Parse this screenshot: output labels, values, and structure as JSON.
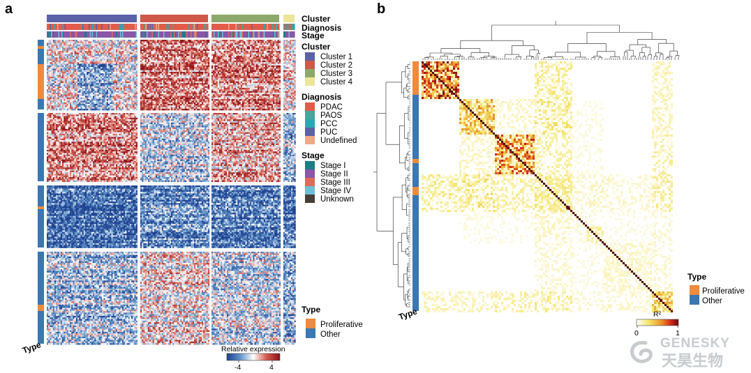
{
  "panels": {
    "a": "a",
    "b": "b"
  },
  "annotation_tracks": {
    "cluster": "Cluster",
    "diagnosis": "Diagnosis",
    "stage": "Stage"
  },
  "legend_a": {
    "cluster": {
      "title": "Cluster",
      "items": [
        {
          "label": "Cluster 1",
          "color": "#5b62a7"
        },
        {
          "label": "Cluster 2",
          "color": "#cf5848"
        },
        {
          "label": "Cluster 3",
          "color": "#8ca86a"
        },
        {
          "label": "Cluster 4",
          "color": "#ede59a"
        }
      ]
    },
    "diagnosis": {
      "title": "Diagnosis",
      "items": [
        {
          "label": "PDAC",
          "color": "#e15c4b"
        },
        {
          "label": "PAOS",
          "color": "#48a69c"
        },
        {
          "label": "PCC",
          "color": "#2aa9b1"
        },
        {
          "label": "PUC",
          "color": "#5b62a7"
        },
        {
          "label": "Undefined",
          "color": "#f0a988"
        }
      ]
    },
    "stage": {
      "title": "Stage",
      "items": [
        {
          "label": "Stage I",
          "color": "#1a7f86"
        },
        {
          "label": "Stage II",
          "color": "#8a56a7"
        },
        {
          "label": "Stage III",
          "color": "#e06a58"
        },
        {
          "label": "Stage IV",
          "color": "#6cc0d6"
        },
        {
          "label": "Unknown",
          "color": "#463f37"
        }
      ]
    },
    "type": {
      "title": "Type",
      "items": [
        {
          "label": "Proliferative",
          "color": "#f08a3c"
        },
        {
          "label": "Other",
          "color": "#3a77b4"
        }
      ]
    },
    "scale": {
      "title": "Relative expression",
      "ticks": [
        "-4",
        "4"
      ],
      "colors": [
        "#1d3f8f",
        "#5f94c9",
        "#ffffff",
        "#d55b4d",
        "#8a1018"
      ]
    }
  },
  "legend_b": {
    "type": {
      "title": "Type",
      "items": [
        {
          "label": "Proliferative",
          "color": "#f08a3c"
        },
        {
          "label": "Other",
          "color": "#3a77b4"
        }
      ]
    },
    "scale": {
      "title": "R²",
      "ticks": [
        "0",
        "1"
      ],
      "colors": [
        "#ffffff",
        "#f5e56a",
        "#eb9228",
        "#d5271c",
        "#6a0d10"
      ]
    }
  },
  "axis_labels": {
    "type_a": "Type",
    "type_b": "Type"
  },
  "watermark": {
    "en": "GENESKY",
    "cn": "天昊生物"
  }
}
